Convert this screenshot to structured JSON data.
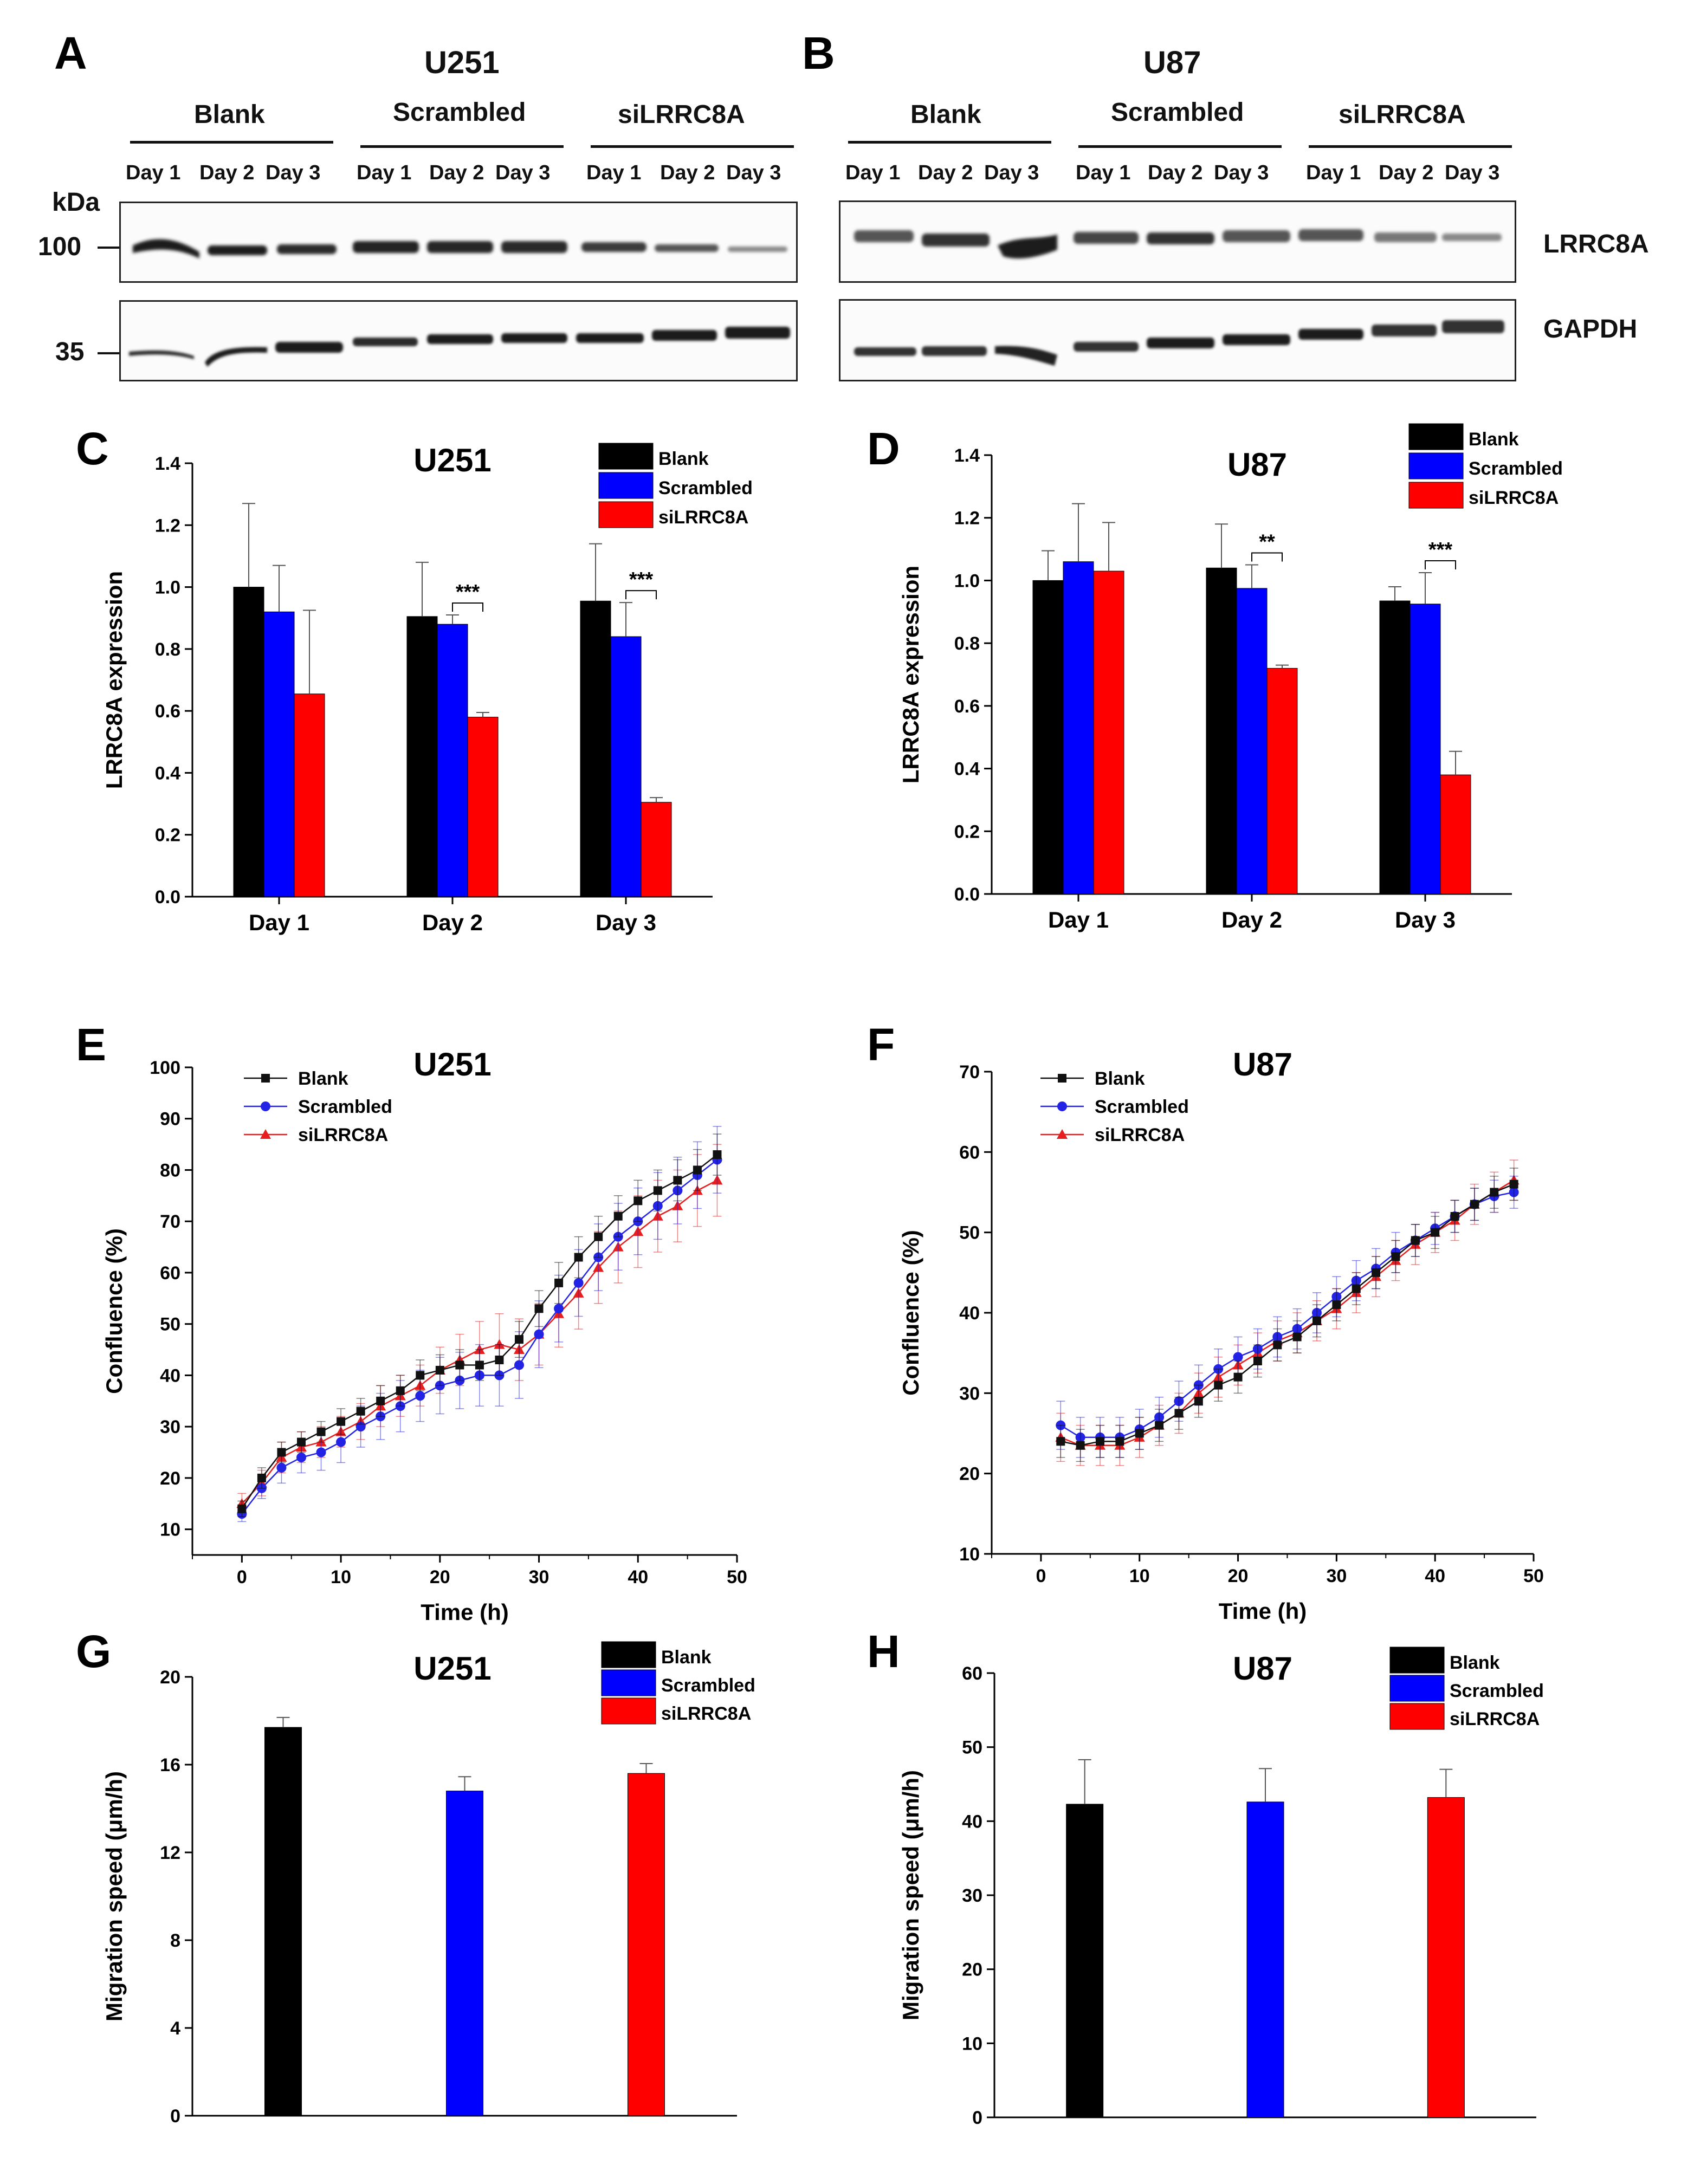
{
  "panel_letters": [
    "A",
    "B",
    "C",
    "D",
    "E",
    "F",
    "G",
    "H"
  ],
  "western_blot": {
    "kda_label": "kDa",
    "markers": [
      "100",
      "35"
    ],
    "proteins": [
      "LRRC8A",
      "GAPDH"
    ],
    "groups": [
      "Blank",
      "Scrambled",
      "siLRRC8A"
    ],
    "lanes": [
      "Day 1",
      "Day 2",
      "Day 3"
    ],
    "cell_lines": [
      "U251",
      "U87"
    ]
  },
  "chart_data": [
    {
      "id": "C",
      "type": "bar",
      "title": "U251",
      "ylabel": "LRRC8A expression",
      "xlabel": "",
      "categories": [
        "Day 1",
        "Day 2",
        "Day 3"
      ],
      "ylim": [
        0,
        1.4
      ],
      "yticks": [
        "0.0",
        "0.2",
        "0.4",
        "0.6",
        "0.8",
        "1.0",
        "1.2",
        "1.4"
      ],
      "series": [
        {
          "name": "Blank",
          "color": "#000000",
          "values": [
            1.0,
            0.905,
            0.955
          ],
          "errors": [
            0.27,
            0.175,
            0.185
          ]
        },
        {
          "name": "Scrambled",
          "color": "#0000ff",
          "values": [
            0.92,
            0.88,
            0.84
          ],
          "errors": [
            0.15,
            0.03,
            0.11
          ]
        },
        {
          "name": "siLRRC8A",
          "color": "#ff0000",
          "values": [
            0.655,
            0.58,
            0.305
          ],
          "errors": [
            0.27,
            0.015,
            0.015
          ]
        }
      ],
      "significance": [
        {
          "category": 1,
          "label": "***"
        },
        {
          "category": 2,
          "label": "***"
        }
      ],
      "legend": "top-right"
    },
    {
      "id": "D",
      "type": "bar",
      "title": "U87",
      "ylabel": "LRRC8A expression",
      "xlabel": "",
      "categories": [
        "Day 1",
        "Day 2",
        "Day 3"
      ],
      "ylim": [
        0,
        1.4
      ],
      "yticks": [
        "0.0",
        "0.2",
        "0.4",
        "0.6",
        "0.8",
        "1.0",
        "1.2",
        "1.4"
      ],
      "series": [
        {
          "name": "Blank",
          "color": "#000000",
          "values": [
            1.0,
            1.04,
            0.935
          ],
          "errors": [
            0.095,
            0.14,
            0.045
          ]
        },
        {
          "name": "Scrambled",
          "color": "#0000ff",
          "values": [
            1.06,
            0.975,
            0.925
          ],
          "errors": [
            0.185,
            0.075,
            0.1
          ]
        },
        {
          "name": "siLRRC8A",
          "color": "#ff0000",
          "values": [
            1.03,
            0.72,
            0.38
          ],
          "errors": [
            0.155,
            0.01,
            0.075
          ]
        }
      ],
      "significance": [
        {
          "category": 1,
          "label": "**"
        },
        {
          "category": 2,
          "label": "***"
        }
      ],
      "legend": "top-right"
    },
    {
      "id": "E",
      "type": "line",
      "title": "U251",
      "xlabel": "Time (h)",
      "ylabel": "Confluence (%)",
      "xlim": [
        -5,
        50
      ],
      "ylim": [
        5,
        100
      ],
      "xticks": [
        0,
        10,
        20,
        30,
        40,
        50
      ],
      "yticks": [
        10,
        20,
        30,
        40,
        50,
        60,
        70,
        80,
        90,
        100
      ],
      "x": [
        0,
        2,
        4,
        6,
        8,
        10,
        12,
        14,
        16,
        18,
        20,
        22,
        24,
        26,
        28,
        30,
        32,
        34,
        36,
        38,
        40,
        42,
        44,
        46,
        48
      ],
      "series": [
        {
          "name": "Blank",
          "color": "#111111",
          "marker": "square",
          "values": [
            14,
            20,
            25,
            27,
            29,
            31,
            33,
            35,
            37,
            40,
            41,
            42,
            42,
            43,
            47,
            53,
            58,
            63,
            67,
            71,
            74,
            76,
            78,
            80,
            83
          ],
          "errors": [
            1.5,
            2,
            2,
            2,
            2,
            2.5,
            2.5,
            3,
            3,
            3,
            3,
            3,
            3,
            3,
            3.5,
            3.5,
            4,
            4,
            4,
            4,
            4,
            4,
            4,
            4,
            4
          ]
        },
        {
          "name": "Scrambled",
          "color": "#2323e6",
          "marker": "circle",
          "values": [
            13,
            18,
            22,
            24,
            25,
            27,
            30,
            32,
            34,
            36,
            38,
            39,
            40,
            40,
            42,
            48,
            53,
            58,
            63,
            67,
            70,
            73,
            76,
            79,
            82
          ],
          "errors": [
            1.5,
            2,
            3,
            3,
            3.5,
            4,
            4,
            4.5,
            5,
            5,
            5.5,
            5.5,
            6,
            6,
            6.5,
            6.5,
            6.5,
            6.5,
            6.5,
            6.5,
            6.5,
            6.5,
            6.5,
            6.5,
            6.5
          ]
        },
        {
          "name": "siLRRC8A",
          "color": "#e61e1e",
          "marker": "triangle",
          "values": [
            15,
            19,
            24,
            26,
            27,
            29,
            31,
            34,
            36,
            38,
            41,
            43,
            45,
            46,
            45,
            48,
            52,
            56,
            61,
            65,
            68,
            71,
            73,
            76,
            78
          ],
          "errors": [
            2,
            2.5,
            3,
            3,
            3,
            3,
            3.5,
            4,
            4,
            4,
            4.5,
            5,
            5.5,
            6,
            6,
            6,
            6.5,
            7,
            7,
            7,
            7,
            7,
            7,
            7,
            7
          ]
        }
      ],
      "legend": "top-left"
    },
    {
      "id": "F",
      "type": "line",
      "title": "U87",
      "xlabel": "Time (h)",
      "ylabel": "Confluence (%)",
      "xlim": [
        -5,
        50
      ],
      "ylim": [
        10,
        70
      ],
      "xticks": [
        0,
        10,
        20,
        30,
        40,
        50
      ],
      "yticks": [
        10,
        20,
        30,
        40,
        50,
        60,
        70
      ],
      "x": [
        2,
        4,
        6,
        8,
        10,
        12,
        14,
        16,
        18,
        20,
        22,
        24,
        26,
        28,
        30,
        32,
        34,
        36,
        38,
        40,
        42,
        44,
        46,
        48
      ],
      "series": [
        {
          "name": "Blank",
          "color": "#111111",
          "marker": "square",
          "values": [
            24,
            23.5,
            24,
            24,
            25,
            26,
            27.5,
            29,
            31,
            32,
            34,
            36,
            37,
            39,
            41,
            43,
            45,
            47,
            49,
            50,
            52,
            53.5,
            55,
            56
          ],
          "errors": [
            2,
            2,
            2,
            2,
            2,
            2,
            2,
            2,
            2,
            2,
            2,
            2,
            2,
            2,
            2,
            2,
            2,
            2,
            2,
            2,
            2,
            2,
            2,
            2
          ]
        },
        {
          "name": "Scrambled",
          "color": "#2323e6",
          "marker": "circle",
          "values": [
            26,
            24.5,
            24.5,
            24.5,
            25.5,
            27,
            29,
            31,
            33,
            34.5,
            35.5,
            37,
            38,
            40,
            42,
            44,
            45.5,
            47.5,
            49,
            50.5,
            52,
            53.5,
            54.5,
            55
          ],
          "errors": [
            3,
            2.5,
            2.5,
            2.5,
            2.5,
            2.5,
            2.5,
            2.5,
            2.5,
            2.5,
            2.5,
            2.5,
            2.5,
            2.5,
            2.5,
            2.5,
            2.5,
            2.5,
            2,
            2,
            2,
            2,
            2,
            2
          ]
        },
        {
          "name": "siLRRC8A",
          "color": "#e61e1e",
          "marker": "triangle",
          "values": [
            24.5,
            23.5,
            23.5,
            23.5,
            24.5,
            26,
            27.5,
            30,
            32,
            33.5,
            35,
            36.5,
            37.5,
            39,
            40.5,
            42.5,
            44.5,
            46.5,
            48.5,
            50,
            51.5,
            53.5,
            55,
            56.5
          ],
          "errors": [
            3,
            2.5,
            2.5,
            2.5,
            2.5,
            2.5,
            2.5,
            2.5,
            2.5,
            2.5,
            2.5,
            2.5,
            2.5,
            2.5,
            2.5,
            2.5,
            2.5,
            2.5,
            2.5,
            2.5,
            2.5,
            2.5,
            2.5,
            2.5
          ]
        }
      ],
      "legend": "top-left"
    },
    {
      "id": "G",
      "type": "bar",
      "title": "U251",
      "ylabel": "Migration speed (μm/h)",
      "xlabel": "",
      "categories": [
        "Blank",
        "Scrambled",
        "siLRRC8A"
      ],
      "ylim": [
        0,
        20
      ],
      "yticks": [
        "0",
        "4",
        "8",
        "12",
        "16",
        "20"
      ],
      "values": [
        17.7,
        14.8,
        15.6
      ],
      "errors": [
        0.45,
        0.65,
        0.45
      ],
      "colors": [
        "#000000",
        "#0000ff",
        "#ff0000"
      ],
      "legend": "top-right"
    },
    {
      "id": "H",
      "type": "bar",
      "title": "U87",
      "ylabel": "Migration speed (μm/h)",
      "xlabel": "",
      "categories": [
        "Blank",
        "Scrambled",
        "siLRRC8A"
      ],
      "ylim": [
        0,
        60
      ],
      "yticks": [
        "0",
        "10",
        "20",
        "30",
        "40",
        "50",
        "60"
      ],
      "values": [
        42.3,
        42.6,
        43.2
      ],
      "errors": [
        6.0,
        4.5,
        3.8
      ],
      "colors": [
        "#000000",
        "#0000ff",
        "#ff0000"
      ],
      "legend": "top-right"
    }
  ]
}
